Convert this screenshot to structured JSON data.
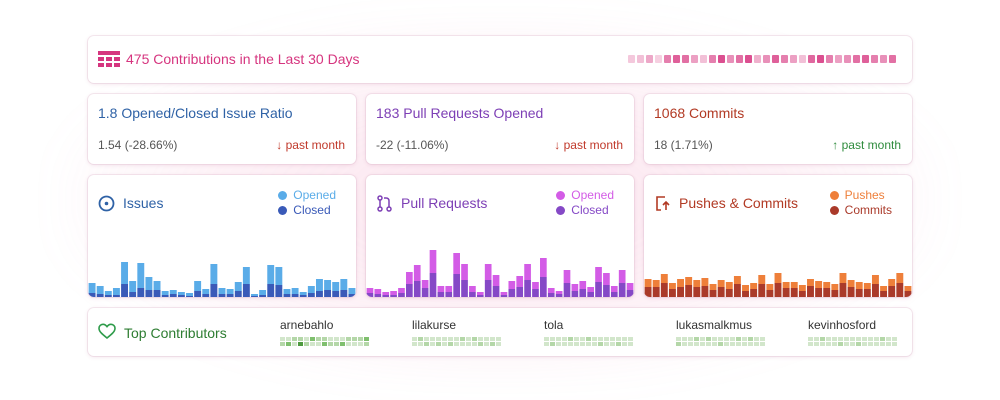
{
  "header": {
    "title": "475 Contributions in the Last 30 Days",
    "icon": "calendar-grid-icon",
    "heatmap": [
      0.15,
      0.2,
      0.35,
      0.1,
      0.6,
      0.8,
      0.7,
      0.4,
      0.2,
      0.6,
      0.9,
      0.5,
      0.7,
      0.9,
      0.3,
      0.5,
      0.8,
      0.6,
      0.4,
      0.2,
      0.75,
      0.9,
      0.6,
      0.4,
      0.5,
      0.7,
      0.8,
      0.6,
      0.5,
      0.7
    ],
    "heat_color": "#d6357f"
  },
  "stats": [
    {
      "title": "1.8 Opened/Closed Issue Ratio",
      "value": "1.54 (-28.66%)",
      "trend": "↓ past month",
      "color": "#2f62a6",
      "trend_color": "#c0392b"
    },
    {
      "title": "183 Pull Requests Opened",
      "value": "-22 (-11.06%)",
      "trend": "↓ past month",
      "color": "#7d3fb5",
      "trend_color": "#c0392b"
    },
    {
      "title": "1068 Commits",
      "value": "18 (1.71%)",
      "trend": "↑ past month",
      "color": "#b23a24",
      "trend_color": "#2e8b3c"
    }
  ],
  "charts": [
    {
      "title": "Issues",
      "icon": "issue-circle-icon",
      "color": "#2f62a6",
      "series": [
        {
          "name": "Opened",
          "color": "#5aace8"
        },
        {
          "name": "Closed",
          "color": "#3a5ab8"
        }
      ],
      "top": [
        14,
        11,
        6,
        9,
        35,
        16,
        34,
        20,
        16,
        6,
        7,
        5,
        4,
        16,
        8,
        33,
        9,
        8,
        15,
        30,
        3,
        7,
        32,
        30,
        8,
        9,
        5,
        11,
        18,
        17,
        15,
        18,
        9
      ],
      "bottom": [
        4,
        3,
        2,
        2,
        13,
        5,
        9,
        7,
        7,
        2,
        3,
        2,
        1,
        6,
        3,
        13,
        3,
        3,
        6,
        13,
        1,
        2,
        13,
        12,
        3,
        3,
        2,
        4,
        6,
        7,
        6,
        7,
        3
      ]
    },
    {
      "title": "Pull Requests",
      "icon": "pull-request-icon",
      "color": "#7d3fb5",
      "series": [
        {
          "name": "Opened",
          "color": "#d35ce6"
        },
        {
          "name": "Closed",
          "color": "#8549c6"
        }
      ],
      "top": [
        9,
        8,
        5,
        6,
        9,
        25,
        32,
        17,
        47,
        11,
        11,
        44,
        33,
        11,
        5,
        33,
        22,
        5,
        16,
        21,
        33,
        15,
        39,
        9,
        6,
        27,
        13,
        16,
        10,
        30,
        24,
        11,
        27,
        14
      ],
      "bottom": [
        4,
        3,
        2,
        2,
        4,
        13,
        16,
        9,
        24,
        5,
        5,
        23,
        17,
        5,
        2,
        17,
        11,
        2,
        8,
        10,
        17,
        8,
        20,
        4,
        3,
        14,
        6,
        8,
        5,
        15,
        12,
        5,
        14,
        7
      ]
    },
    {
      "title": "Pushes & Commits",
      "icon": "push-arrow-icon",
      "color": "#b23a24",
      "series": [
        {
          "name": "Pushes",
          "color": "#ee7f3a"
        },
        {
          "name": "Commits",
          "color": "#aa3a2a"
        }
      ],
      "top": [
        18,
        17,
        23,
        14,
        18,
        20,
        17,
        19,
        13,
        17,
        15,
        21,
        12,
        14,
        22,
        13,
        24,
        15,
        15,
        12,
        18,
        16,
        15,
        13,
        24,
        17,
        15,
        14,
        22,
        11,
        18,
        24,
        11
      ],
      "bottom": [
        10,
        10,
        14,
        8,
        10,
        12,
        10,
        11,
        7,
        10,
        8,
        13,
        6,
        8,
        13,
        7,
        14,
        9,
        9,
        6,
        11,
        9,
        9,
        7,
        14,
        10,
        8,
        8,
        13,
        6,
        11,
        14,
        6
      ]
    }
  ],
  "contributors": {
    "title": "Top Contributors",
    "icon": "heart-icon",
    "people": [
      {
        "name": "arnebahlo",
        "levels": [
          1,
          2,
          1,
          3,
          2,
          1,
          2,
          4,
          1,
          2,
          3,
          1,
          2,
          1,
          2,
          3,
          1,
          2,
          1,
          2,
          1,
          3,
          2,
          1,
          2,
          1,
          2,
          1,
          3,
          2
        ]
      },
      {
        "name": "lilakurse",
        "levels": [
          1,
          1,
          2,
          1,
          1,
          2,
          1,
          1,
          1,
          2,
          1,
          1,
          1,
          2,
          1,
          1,
          2,
          1,
          1,
          1,
          2,
          1,
          1,
          2,
          1,
          1,
          1,
          2,
          1,
          1
        ]
      },
      {
        "name": "tola",
        "levels": [
          1,
          1,
          1,
          2,
          1,
          1,
          1,
          1,
          2,
          1,
          1,
          1,
          1,
          1,
          2,
          1,
          1,
          1,
          1,
          2,
          1,
          1,
          1,
          1,
          1,
          2,
          1,
          1,
          1,
          1
        ]
      },
      {
        "name": "lukasmalkmus",
        "levels": [
          1,
          2,
          1,
          1,
          1,
          1,
          2,
          1,
          1,
          1,
          2,
          1,
          1,
          1,
          1,
          2,
          1,
          1,
          1,
          1,
          2,
          1,
          1,
          1,
          2,
          1,
          1,
          1,
          1,
          1
        ]
      },
      {
        "name": "kevinhosford",
        "levels": [
          1,
          1,
          1,
          1,
          2,
          1,
          1,
          1,
          1,
          1,
          1,
          2,
          1,
          1,
          1,
          1,
          1,
          2,
          1,
          1,
          1,
          1,
          1,
          1,
          2,
          1,
          1,
          1,
          1,
          1
        ]
      }
    ]
  }
}
